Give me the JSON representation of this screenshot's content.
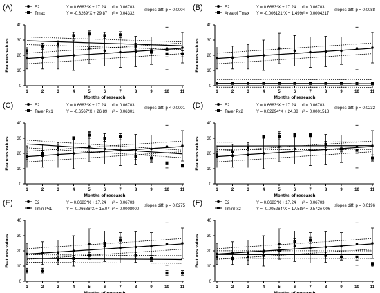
{
  "figure": {
    "x_ticks": [
      "1",
      "2",
      "3",
      "4",
      "5",
      "6",
      "7",
      "8",
      "9",
      "10",
      "11"
    ],
    "y_ticks": [
      "0",
      "10",
      "20",
      "30",
      "40"
    ],
    "series_a_name": "E2",
    "series_a_eq": "Y = 0.6683*X + 17.24",
    "series_a_r2": "r² = 0.06703"
  },
  "chart_data": [
    {
      "type": "scatter",
      "panel_label": "(A)",
      "xlabel": "Months of research",
      "ylabel": "Features values",
      "xlim": [
        1,
        11
      ],
      "ylim": [
        0,
        40
      ],
      "grid": false,
      "legend": "top-left",
      "slopes_diff": "slopes diff: p = 0.0004",
      "series": [
        {
          "name": "E2",
          "marker": "dot",
          "equation": "Y = 0.6683*X + 17.24",
          "r2": "r² = 0.06703",
          "slope": 0.6683,
          "intercept": 17.24,
          "x": [
            1,
            2,
            3,
            4,
            5,
            6,
            7,
            8,
            9,
            10,
            11
          ],
          "y": [
            18,
            18.5,
            19,
            20,
            24.5,
            23,
            22,
            22.5,
            23,
            24.5,
            25
          ],
          "err": [
            7,
            7.5,
            8,
            10,
            10,
            10,
            10,
            10,
            9,
            14,
            10
          ]
        },
        {
          "name": "Tmax",
          "marker": "square",
          "equation": "Y = -0.3269*X + 29.87",
          "r2": "r² = 0.04332",
          "slope": -0.3269,
          "intercept": 29.87,
          "x": [
            1,
            2,
            3,
            4,
            5,
            6,
            7,
            8,
            9,
            10,
            11
          ],
          "y": [
            23,
            26,
            27.5,
            33,
            34,
            33,
            33.5,
            26,
            22,
            21,
            21
          ],
          "err": [
            2,
            2,
            2,
            2,
            2,
            2,
            2,
            2,
            2,
            2,
            2
          ]
        }
      ]
    },
    {
      "type": "scatter",
      "panel_label": "(B)",
      "xlabel": "Months of research",
      "ylabel": "Features values",
      "xlim": [
        1,
        11
      ],
      "ylim": [
        0,
        40
      ],
      "grid": false,
      "legend": "top-left",
      "slopes_diff": "slopes diff: p = 0.0088",
      "series": [
        {
          "name": "E2",
          "marker": "dot",
          "equation": "Y = 0.6683*X + 17.24",
          "r2": "r² = 0.06703",
          "slope": 0.6683,
          "intercept": 17.24,
          "x": [
            1,
            2,
            3,
            4,
            5,
            6,
            7,
            8,
            9,
            10,
            11
          ],
          "y": [
            18,
            18.5,
            19,
            20,
            24.5,
            23,
            22,
            22.5,
            23,
            24.5,
            25
          ],
          "err": [
            7,
            7.5,
            8,
            10,
            10,
            10,
            10,
            10,
            9,
            14,
            10
          ]
        },
        {
          "name": "Area of Tmax",
          "marker": "square",
          "equation": "Y = -0.006121*X + 1.499",
          "r2": "r² = 0.0004217",
          "slope": -0.006121,
          "intercept": 1.499,
          "x": [
            1,
            2,
            3,
            4,
            5,
            6,
            7,
            8,
            9,
            10,
            11
          ],
          "y": [
            1.5,
            1.5,
            1.5,
            1.5,
            1.5,
            1.5,
            1.5,
            1.5,
            1.5,
            1.4,
            1.4
          ],
          "err": [
            0.3,
            0.3,
            0.3,
            0.3,
            0.3,
            0.3,
            0.3,
            0.3,
            0.3,
            0.3,
            0.3
          ]
        }
      ]
    },
    {
      "type": "scatter",
      "panel_label": "(C)",
      "xlabel": "Months of research",
      "ylabel": "Features values",
      "xlim": [
        1,
        11
      ],
      "ylim": [
        0,
        40
      ],
      "grid": false,
      "legend": "top-left",
      "slopes_diff": "slopes diff: p < 0.0001",
      "series": [
        {
          "name": "E2",
          "marker": "dot",
          "equation": "Y = 0.6683*X + 17.24",
          "r2": "r² = 0.06703",
          "slope": 0.6683,
          "intercept": 17.24,
          "x": [
            1,
            2,
            3,
            4,
            5,
            6,
            7,
            8,
            9,
            10,
            11
          ],
          "y": [
            18,
            18.5,
            19,
            20,
            24.5,
            23,
            22,
            22.5,
            23,
            24.5,
            25
          ],
          "err": [
            7,
            7.5,
            8,
            10,
            10,
            10,
            10,
            10,
            9,
            14,
            10
          ]
        },
        {
          "name": "Taver Px1",
          "marker": "square",
          "equation": "Y = -0.6567*X + 26.89",
          "r2": "r² = 0.06301",
          "slope": -0.6567,
          "intercept": 26.89,
          "x": [
            1,
            2,
            3,
            4,
            5,
            6,
            7,
            8,
            9,
            10,
            11
          ],
          "y": [
            18,
            20,
            24,
            30,
            32,
            30,
            31,
            18,
            17,
            13.5,
            12
          ],
          "err": [
            2,
            2,
            2,
            1,
            2,
            2,
            2,
            2,
            2,
            1,
            1
          ]
        }
      ]
    },
    {
      "type": "scatter",
      "panel_label": "(D)",
      "xlabel": "Months of research",
      "ylabel": "Features values",
      "xlim": [
        1,
        11
      ],
      "ylim": [
        0,
        40
      ],
      "grid": false,
      "legend": "top-left",
      "slopes_diff": "slopes diff: p = 0.0232",
      "series": [
        {
          "name": "E2",
          "marker": "dot",
          "equation": "Y = 0.6683*X + 17.24",
          "r2": "r² = 0.06703",
          "slope": 0.6683,
          "intercept": 17.24,
          "x": [
            1,
            2,
            3,
            4,
            5,
            6,
            7,
            8,
            9,
            10,
            11
          ],
          "y": [
            18,
            18.5,
            19,
            20,
            24.5,
            23,
            22,
            22.5,
            23,
            24.5,
            25
          ],
          "err": [
            7,
            7.5,
            8,
            10,
            10,
            10,
            10,
            10,
            9,
            14,
            10
          ]
        },
        {
          "name": "Taver Px2",
          "marker": "square",
          "equation": "Y = 0.02294*X + 24.88",
          "r2": "r² = 0.0001518",
          "slope": 0.02294,
          "intercept": 24.88,
          "x": [
            1,
            2,
            3,
            4,
            5,
            6,
            7,
            8,
            9,
            10,
            11
          ],
          "y": [
            19,
            21,
            24,
            31,
            31,
            32,
            32,
            26,
            23,
            22,
            17
          ],
          "err": [
            2,
            2,
            2,
            1,
            2,
            1,
            1,
            2,
            2,
            2,
            2
          ]
        }
      ]
    },
    {
      "type": "scatter",
      "panel_label": "(E)",
      "xlabel": "Months of research",
      "ylabel": "Features values",
      "xlim": [
        1,
        11
      ],
      "ylim": [
        0,
        40
      ],
      "grid": false,
      "legend": "top-left",
      "slopes_diff": "slopes diff: p = 0.0275",
      "series": [
        {
          "name": "E2",
          "marker": "dot",
          "equation": "Y = 0.6683*X + 17.24",
          "r2": "r² = 0.06703",
          "slope": 0.6683,
          "intercept": 17.24,
          "x": [
            1,
            2,
            3,
            4,
            5,
            6,
            7,
            8,
            9,
            10,
            11
          ],
          "y": [
            18,
            18.5,
            19,
            20,
            24.5,
            23,
            22,
            22.5,
            23,
            24.5,
            25
          ],
          "err": [
            7,
            7.5,
            8,
            10,
            10,
            10,
            10,
            10,
            9,
            14,
            10
          ]
        },
        {
          "name": "Tmin Px1",
          "marker": "square",
          "equation": "Y = -0.06686*X + 15.07",
          "r2": "r² = 0.0008000",
          "slope": -0.06686,
          "intercept": 15.07,
          "x": [
            1,
            2,
            3,
            4,
            5,
            6,
            7,
            8,
            9,
            10,
            11
          ],
          "y": [
            7,
            7,
            14,
            15,
            17,
            25,
            27,
            17,
            15,
            5.5,
            5.5
          ],
          "err": [
            1.5,
            1.5,
            2,
            2,
            2,
            2,
            2,
            2,
            2,
            1.5,
            1.5
          ]
        }
      ]
    },
    {
      "type": "scatter",
      "panel_label": "(F)",
      "xlabel": "Months of research",
      "ylabel": "Features values",
      "xlim": [
        1,
        11
      ],
      "ylim": [
        0,
        40
      ],
      "grid": false,
      "legend": "top-left",
      "slopes_diff": "slopes diff: p = 0.0196",
      "series": [
        {
          "name": "E2",
          "marker": "dot",
          "equation": "Y = 0.6683*X + 17.24",
          "r2": "r² = 0.06703",
          "slope": 0.6683,
          "intercept": 17.24,
          "x": [
            1,
            2,
            3,
            4,
            5,
            6,
            7,
            8,
            9,
            10,
            11
          ],
          "y": [
            18,
            18.5,
            19,
            20,
            24.5,
            23,
            22,
            22.5,
            23,
            24.5,
            25
          ],
          "err": [
            7,
            7.5,
            8,
            10,
            10,
            10,
            10,
            10,
            9,
            14,
            10
          ]
        },
        {
          "name": "TminPx2",
          "marker": "square",
          "equation": "Y = -0.005264*X + 17.58",
          "r2": "r² = 9.572e-006",
          "slope": -0.005264,
          "intercept": 17.58,
          "x": [
            1,
            2,
            3,
            4,
            5,
            6,
            7,
            8,
            9,
            10,
            11
          ],
          "y": [
            16,
            15,
            16,
            17,
            20,
            26,
            27,
            17,
            16,
            16,
            11
          ],
          "err": [
            1.5,
            1.5,
            2,
            2,
            2,
            2,
            2,
            2,
            2,
            2,
            1.5
          ]
        }
      ]
    }
  ]
}
